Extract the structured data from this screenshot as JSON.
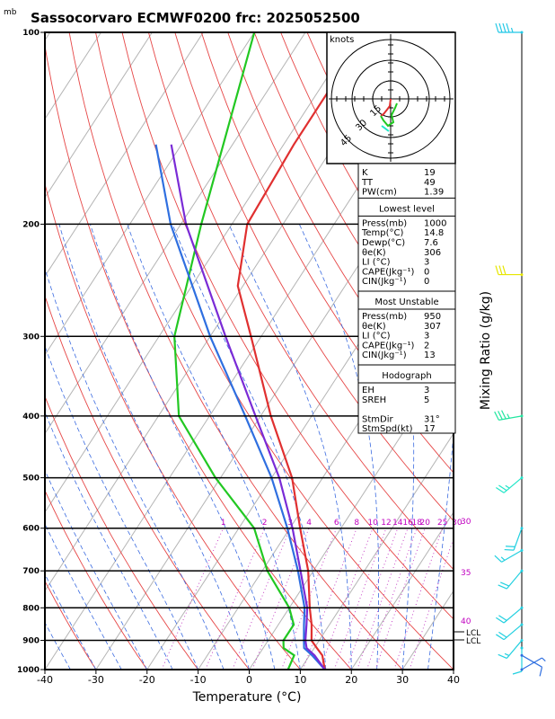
{
  "title": "Sassocorvaro ECMWF0200  frc: 2025052500",
  "pressure_unit": "mb",
  "x_axis_title": "Temperature (°C)",
  "right_axis_title": "Mixing Ratio (g/kg)",
  "hodograph": {
    "units_label": "knots",
    "ring_labels": [
      "15",
      "30",
      "45"
    ]
  },
  "mixing_ratio_labels": [
    "1",
    "2",
    "3",
    "4",
    "6",
    "8",
    "10",
    "12",
    "14",
    "16",
    "18",
    "20",
    "25",
    "30"
  ],
  "theta_e_labels": [
    "30",
    "35",
    "40"
  ],
  "lcl_labels": [
    "LCL",
    "LCL"
  ],
  "indices": {
    "top": [
      [
        "K",
        "19"
      ],
      [
        "TT",
        "49"
      ],
      [
        "PW(cm)",
        "1.39"
      ]
    ],
    "lowest_level": {
      "header": "Lowest level",
      "rows": [
        [
          "Press(mb)",
          "1000"
        ],
        [
          "Temp(°C)",
          "14.8"
        ],
        [
          "Dewp(°C)",
          "7.6"
        ],
        [
          "θe(K)",
          "306"
        ],
        [
          "LI (°C)",
          "3"
        ],
        [
          "CAPE(Jkg⁻¹)",
          "0"
        ],
        [
          "CIN(Jkg⁻¹)",
          "0"
        ]
      ]
    },
    "most_unstable": {
      "header": "Most Unstable",
      "rows": [
        [
          "Press(mb)",
          "950"
        ],
        [
          "θe(K)",
          "307"
        ],
        [
          "LI (°C)",
          "3"
        ],
        [
          "CAPE(Jkg⁻¹)",
          "2"
        ],
        [
          "CIN(Jkg⁻¹)",
          "13"
        ]
      ]
    },
    "hodograph": {
      "header": "Hodograph",
      "rows": [
        [
          "EH",
          "3"
        ],
        [
          "SREH",
          "5"
        ],
        [
          "",
          ""
        ],
        [
          "StmDir",
          "31°"
        ],
        [
          "StmSpd(kt)",
          "17"
        ]
      ]
    }
  },
  "chart_data": {
    "type": "line",
    "skew_deg_per_log_decade": 81,
    "xlim": [
      -40,
      40
    ],
    "pressure_ticks": [
      100,
      200,
      300,
      400,
      500,
      600,
      700,
      800,
      900,
      1000
    ],
    "temp_ticks": [
      -40,
      -30,
      -20,
      -10,
      0,
      10,
      20,
      30,
      40
    ],
    "series": [
      {
        "color": "#e03030",
        "points": [
          [
            1000,
            14.8
          ],
          [
            950,
            12.5
          ],
          [
            925,
            10.5
          ],
          [
            900,
            8.5
          ],
          [
            850,
            6.5
          ],
          [
            800,
            4
          ],
          [
            700,
            -1
          ],
          [
            600,
            -8
          ],
          [
            500,
            -16
          ],
          [
            400,
            -28
          ],
          [
            300,
            -42
          ],
          [
            250,
            -51
          ],
          [
            200,
            -57
          ],
          [
            150,
            -58
          ],
          [
            100,
            -58
          ]
        ]
      },
      {
        "color": "#22c822",
        "points": [
          [
            1000,
            7.6
          ],
          [
            950,
            7
          ],
          [
            925,
            4
          ],
          [
            900,
            3
          ],
          [
            850,
            3
          ],
          [
            800,
            0
          ],
          [
            700,
            -9
          ],
          [
            600,
            -17
          ],
          [
            500,
            -31
          ],
          [
            400,
            -46
          ],
          [
            300,
            -57
          ],
          [
            200,
            -66
          ],
          [
            100,
            -80
          ]
        ]
      },
      {
        "color": "#2f6fe0",
        "points": [
          [
            1000,
            14.8
          ],
          [
            950,
            10.5
          ],
          [
            925,
            8
          ],
          [
            900,
            7
          ],
          [
            850,
            5
          ],
          [
            800,
            3
          ],
          [
            700,
            -3
          ],
          [
            600,
            -10.5
          ],
          [
            500,
            -20
          ],
          [
            400,
            -33
          ],
          [
            300,
            -50
          ],
          [
            200,
            -72
          ],
          [
            150,
            -85
          ]
        ]
      },
      {
        "color": "#7a2bd6",
        "points": [
          [
            1000,
            14.8
          ],
          [
            950,
            11
          ],
          [
            925,
            8.5
          ],
          [
            900,
            7.3
          ],
          [
            850,
            5.5
          ],
          [
            800,
            3.5
          ],
          [
            700,
            -2.5
          ],
          [
            600,
            -9.5
          ],
          [
            500,
            -18.5
          ],
          [
            400,
            -31
          ],
          [
            300,
            -47
          ],
          [
            200,
            -69
          ],
          [
            150,
            -82
          ]
        ]
      }
    ],
    "wind_barbs": [
      {
        "p": 100,
        "dir": 270,
        "spd": 45,
        "color": "#22c8e6"
      },
      {
        "p": 240,
        "dir": 270,
        "spd": 30,
        "color": "#e6e600"
      },
      {
        "p": 400,
        "dir": 260,
        "spd": 35,
        "color": "#22e6a0"
      },
      {
        "p": 500,
        "dir": 230,
        "spd": 25,
        "color": "#22e6c8"
      },
      {
        "p": 600,
        "dir": 200,
        "spd": 20,
        "color": "#22d0e0"
      },
      {
        "p": 650,
        "dir": 240,
        "spd": 15,
        "color": "#22d0e0"
      },
      {
        "p": 700,
        "dir": 220,
        "spd": 20,
        "color": "#22d0e0"
      },
      {
        "p": 800,
        "dir": 230,
        "spd": 20,
        "color": "#22d0e0"
      },
      {
        "p": 850,
        "dir": 230,
        "spd": 20,
        "color": "#22d0e0"
      },
      {
        "p": 900,
        "dir": 220,
        "spd": 15,
        "color": "#22d0e0"
      },
      {
        "p": 925,
        "dir": 180,
        "spd": 10,
        "color": "#22d0e0"
      },
      {
        "p": 950,
        "dir": 120,
        "spd": 10,
        "color": "#2f6fe0"
      },
      {
        "p": 1000,
        "dir": 60,
        "spd": 5,
        "color": "#2f6fe0"
      }
    ]
  }
}
